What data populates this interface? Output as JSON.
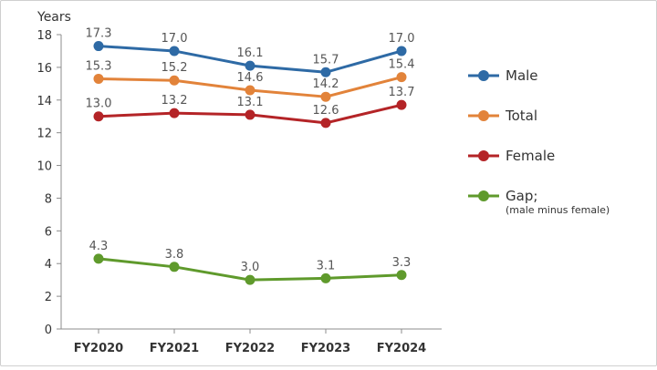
{
  "chart_data": {
    "type": "line",
    "title": "",
    "xlabel": "",
    "ylabel": "Years",
    "ylim": [
      0,
      18
    ],
    "yticks": [
      0,
      2,
      4,
      6,
      8,
      10,
      12,
      14,
      16,
      18
    ],
    "categories": [
      "FY2020",
      "FY2021",
      "FY2022",
      "FY2023",
      "FY2024"
    ],
    "series": [
      {
        "name": "Male",
        "color": "#2e6aa5",
        "values": [
          17.3,
          17.0,
          16.1,
          15.7,
          17.0
        ],
        "labels": [
          "17.3",
          "17.0",
          "16.1",
          "15.7",
          "17.0"
        ]
      },
      {
        "name": "Total",
        "color": "#e2833a",
        "values": [
          15.3,
          15.2,
          14.6,
          14.2,
          15.4
        ],
        "labels": [
          "15.3",
          "15.2",
          "14.6",
          "14.2",
          "15.4"
        ]
      },
      {
        "name": "Female",
        "color": "#b42427",
        "values": [
          13.0,
          13.2,
          13.1,
          12.6,
          13.7
        ],
        "labels": [
          "13.0",
          "13.2",
          "13.1",
          "12.6",
          "13.7"
        ]
      },
      {
        "name": "Gap;",
        "subname": "(male minus female)",
        "color": "#5f9a2c",
        "values": [
          4.3,
          3.8,
          3.0,
          3.1,
          3.3
        ],
        "labels": [
          "4.3",
          "3.8",
          "3.0",
          "3.1",
          "3.3"
        ]
      }
    ],
    "grid": false,
    "legend": "right"
  }
}
